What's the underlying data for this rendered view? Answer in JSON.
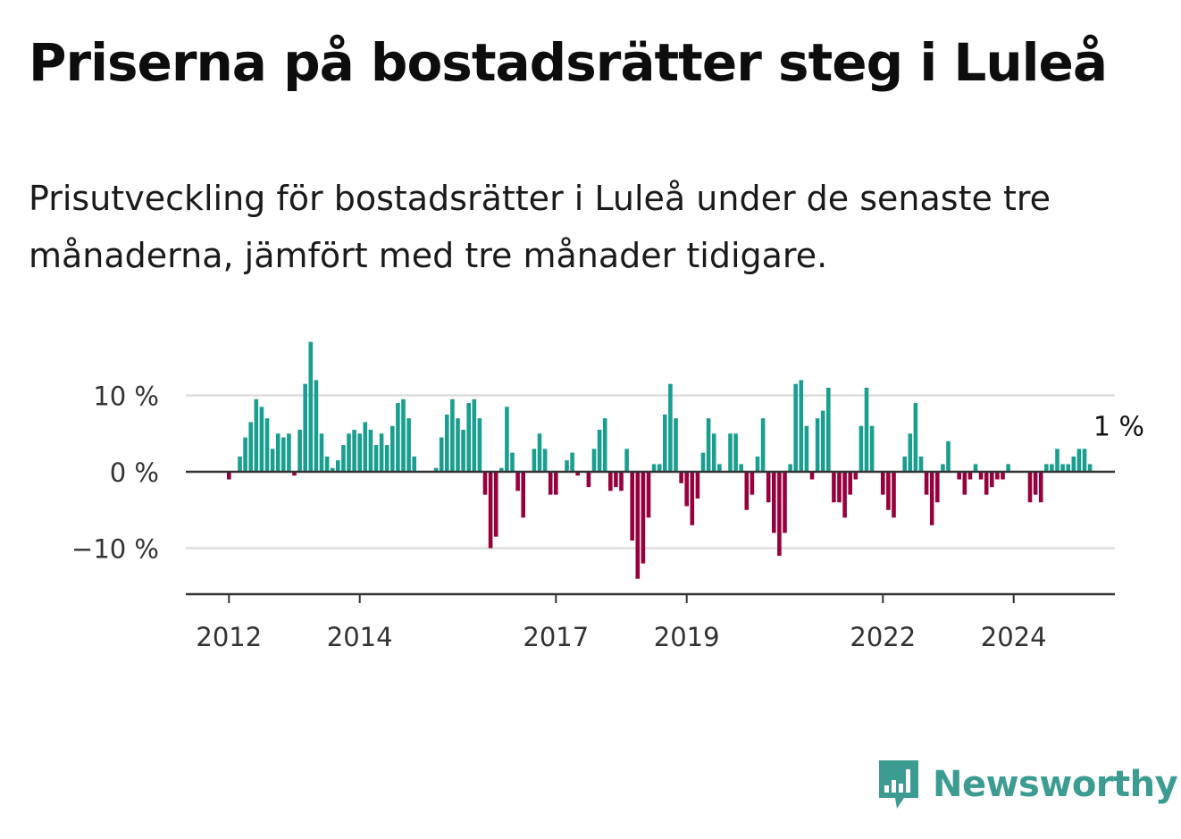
{
  "title": "Priserna på bostadsrätter steg i Luleå",
  "subtitle": "Prisutveckling för bostadsrätter i Luleå under de senaste tre månaderna, jämfört med tre månader tidigare.",
  "brand": {
    "name": "Newsworthy",
    "color": "#3d9c91"
  },
  "colors": {
    "positive": "#1a9e8f",
    "negative": "#96003c",
    "zero_line": "#333333",
    "grid": "#dddddd"
  },
  "chart_data": {
    "type": "bar",
    "title": "Priserna på bostadsrätter steg i Luleå",
    "xlabel": "",
    "ylabel": "",
    "x_start": "2012-01",
    "x_end": "2024-12",
    "ylim": [
      -16,
      20
    ],
    "y_ticks": [
      10,
      0,
      -10
    ],
    "y_tick_labels": [
      "10 %",
      "0 %",
      "−10 %"
    ],
    "x_tick_labels": [
      "2012",
      "2014",
      "2017",
      "2019",
      "2022",
      "2024"
    ],
    "grid": true,
    "legend": "none",
    "last_value_label": "1 %",
    "values": [
      -1,
      0,
      2,
      4.5,
      6.5,
      9.5,
      8.5,
      7,
      3,
      5,
      4.5,
      5,
      -0.5,
      5.5,
      11.5,
      17,
      12,
      5,
      2,
      0.5,
      1.5,
      3.5,
      5,
      5.5,
      5,
      6.5,
      5.5,
      3.5,
      5,
      3.5,
      6,
      9,
      9.5,
      7,
      2,
      0,
      0,
      0,
      0.5,
      4.5,
      7.5,
      9.5,
      7,
      5.5,
      9,
      9.5,
      7,
      -3,
      -10,
      -8.5,
      0.5,
      8.5,
      2.5,
      -2.5,
      -6,
      0,
      3,
      5,
      3,
      -3,
      -3,
      0,
      1.5,
      2.5,
      -0.5,
      0,
      -2,
      3,
      5.5,
      7,
      -2.5,
      -2,
      -2.5,
      3,
      -9,
      -14,
      -12,
      -6,
      1,
      1,
      7.5,
      11.5,
      7,
      -1.5,
      -4.5,
      -7,
      -3.5,
      2.5,
      7,
      5,
      1,
      0,
      5,
      5,
      1,
      -5,
      -3,
      2,
      7,
      -4,
      -8,
      -11,
      -8,
      1,
      11.5,
      12,
      6,
      -1,
      7,
      8,
      11,
      -4,
      -4,
      -6,
      -3,
      -1,
      6,
      11,
      6,
      0,
      -3,
      -5,
      -6,
      0,
      2,
      5,
      9,
      2,
      -3,
      -7,
      -4,
      1,
      4,
      0,
      -1,
      -3,
      -1,
      1,
      -1,
      -3,
      -2,
      -1,
      -1,
      1,
      0,
      0,
      0,
      -4,
      -3,
      -4,
      1,
      1,
      3,
      1,
      1,
      2,
      3,
      3,
      1
    ]
  }
}
